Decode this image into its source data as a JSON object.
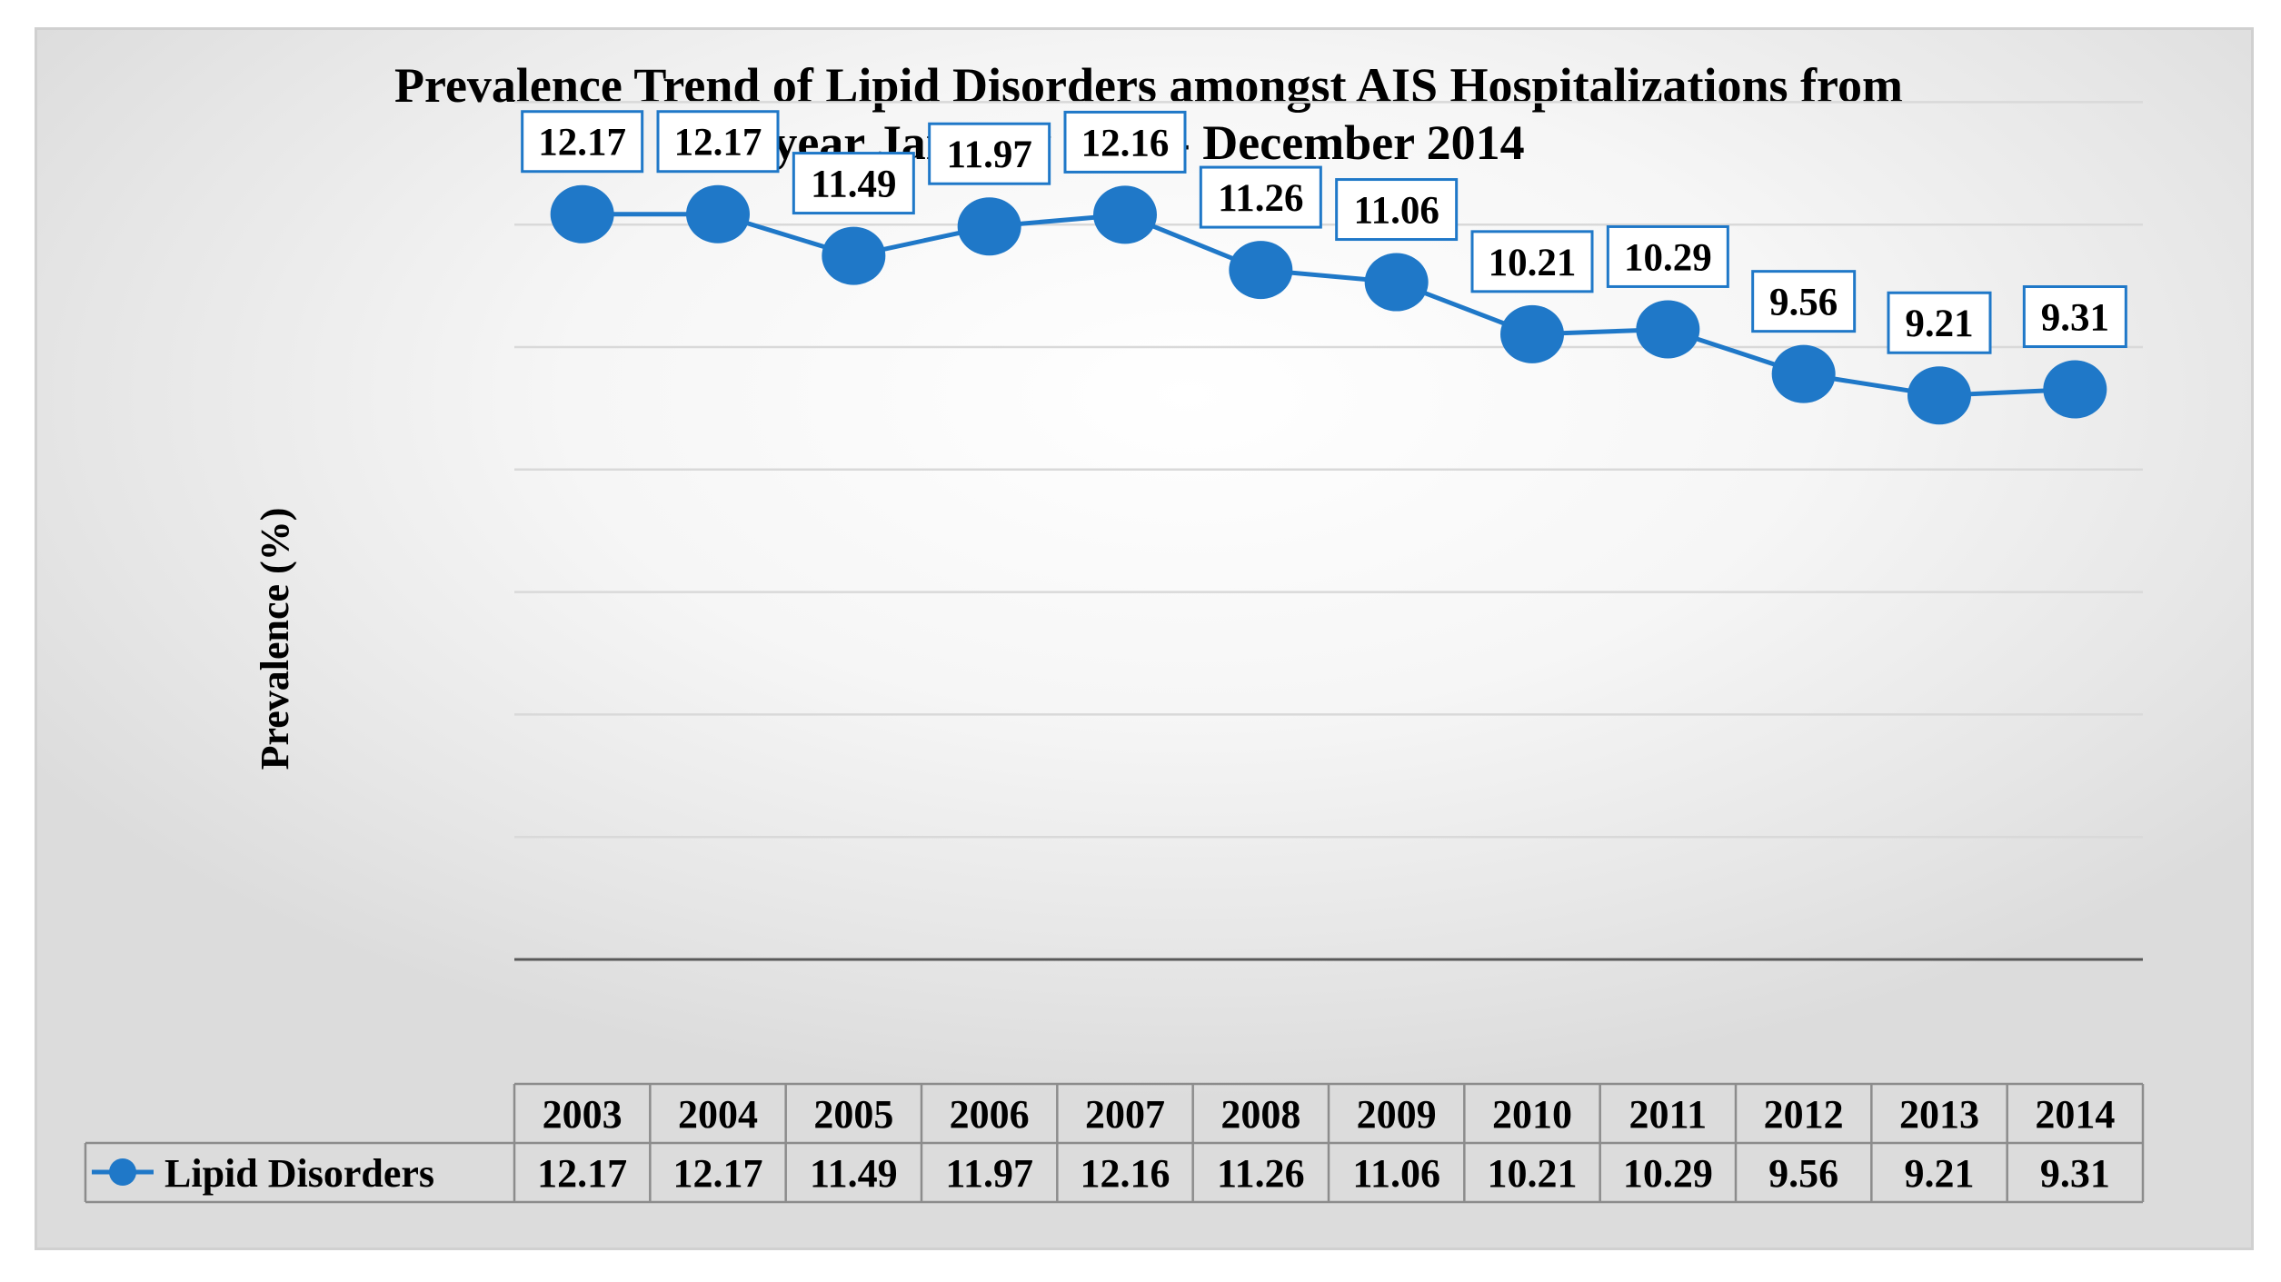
{
  "chart_data": {
    "type": "line",
    "title_lines": [
      "Prevalence Trend of Lipid Disorders amongst AIS Hospitalizations from",
      "year  January 2003 - December 2014"
    ],
    "ylabel": "Prevalence (%)",
    "xlabel": "",
    "categories": [
      "2003",
      "2004",
      "2005",
      "2006",
      "2007",
      "2008",
      "2009",
      "2010",
      "2011",
      "2012",
      "2013",
      "2014"
    ],
    "series": [
      {
        "name": "Lipid Disorders",
        "values": [
          12.17,
          12.17,
          11.49,
          11.97,
          12.16,
          11.26,
          11.06,
          10.21,
          10.29,
          9.56,
          9.21,
          9.31
        ],
        "labels": [
          "12.17",
          "12.17",
          "11.49",
          "11.97",
          "12.16",
          "11.26",
          "11.06",
          "10.21",
          "10.29",
          "9.56",
          "9.21",
          "9.31"
        ]
      }
    ],
    "ylim": [
      0,
      14
    ],
    "grid": true,
    "data_table": true,
    "legend": "data-table",
    "colors": {
      "series": "#1f78c8",
      "grid": "#d9d9d9",
      "table_border": "#8c8c8c"
    }
  }
}
